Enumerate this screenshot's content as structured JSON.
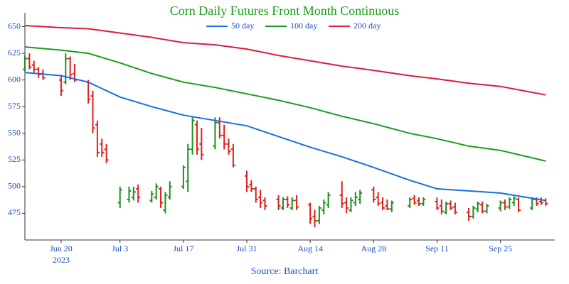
{
  "chart_data": {
    "type": "ohlc",
    "title": "Corn Daily Futures Front Month Continuous",
    "source": "Source: Barchart",
    "up_color": "#1f8f1f",
    "down_color": "#e0201b",
    "x": [
      "2023-06-12",
      "2023-06-13",
      "2023-06-14",
      "2023-06-15",
      "2023-06-16",
      "2023-06-20",
      "2023-06-21",
      "2023-06-22",
      "2023-06-23",
      "2023-06-26",
      "2023-06-27",
      "2023-06-28",
      "2023-06-29",
      "2023-06-30",
      "2023-07-03",
      "2023-07-05",
      "2023-07-06",
      "2023-07-07",
      "2023-07-10",
      "2023-07-11",
      "2023-07-12",
      "2023-07-13",
      "2023-07-14",
      "2023-07-17",
      "2023-07-18",
      "2023-07-19",
      "2023-07-20",
      "2023-07-21",
      "2023-07-24",
      "2023-07-25",
      "2023-07-26",
      "2023-07-27",
      "2023-07-28",
      "2023-07-31",
      "2023-08-01",
      "2023-08-02",
      "2023-08-03",
      "2023-08-04",
      "2023-08-07",
      "2023-08-08",
      "2023-08-09",
      "2023-08-10",
      "2023-08-11",
      "2023-08-14",
      "2023-08-15",
      "2023-08-16",
      "2023-08-17",
      "2023-08-18",
      "2023-08-21",
      "2023-08-22",
      "2023-08-23",
      "2023-08-24",
      "2023-08-25",
      "2023-08-28",
      "2023-08-29",
      "2023-08-30",
      "2023-08-31",
      "2023-09-01",
      "2023-09-05",
      "2023-09-06",
      "2023-09-07",
      "2023-09-08",
      "2023-09-11",
      "2023-09-12",
      "2023-09-13",
      "2023-09-14",
      "2023-09-15",
      "2023-09-18",
      "2023-09-19",
      "2023-09-20",
      "2023-09-21",
      "2023-09-22",
      "2023-09-25",
      "2023-09-26",
      "2023-09-27",
      "2023-09-28",
      "2023-09-29",
      "2023-10-02",
      "2023-10-03",
      "2023-10-04",
      "2023-10-05"
    ],
    "open": [
      610,
      620,
      614,
      610,
      606,
      600,
      598,
      620,
      606,
      598,
      585,
      558,
      540,
      535,
      485,
      488,
      490,
      498,
      487,
      490,
      498,
      478,
      490,
      500,
      505,
      535,
      558,
      540,
      538,
      560,
      548,
      540,
      535,
      510,
      502,
      498,
      490,
      487,
      488,
      480,
      488,
      480,
      487,
      483,
      472,
      468,
      478,
      483,
      492,
      485,
      478,
      485,
      488,
      497,
      490,
      485,
      482,
      479,
      482,
      489,
      487,
      484,
      486,
      482,
      476,
      484,
      481,
      476,
      472,
      479,
      483,
      477,
      480,
      485,
      481,
      485,
      488,
      480,
      488,
      486,
      487
    ],
    "high": [
      623,
      625,
      618,
      612,
      610,
      605,
      625,
      622,
      615,
      600,
      590,
      562,
      545,
      540,
      500,
      500,
      500,
      502,
      496,
      503,
      500,
      495,
      505,
      520,
      540,
      565,
      562,
      555,
      565,
      565,
      558,
      545,
      540,
      515,
      506,
      500,
      497,
      490,
      492,
      490,
      491,
      490,
      492,
      485,
      478,
      482,
      488,
      495,
      505,
      490,
      490,
      495,
      497,
      500,
      495,
      490,
      488,
      487,
      490,
      492,
      490,
      490,
      490,
      488,
      486,
      487,
      485,
      480,
      482,
      486,
      486,
      484,
      487,
      488,
      490,
      491,
      490,
      490,
      490,
      490,
      489
    ],
    "low": [
      608,
      610,
      607,
      602,
      600,
      585,
      596,
      600,
      598,
      578,
      550,
      528,
      528,
      522,
      480,
      485,
      487,
      485,
      485,
      488,
      480,
      475,
      488,
      498,
      495,
      530,
      530,
      525,
      535,
      545,
      535,
      530,
      518,
      495,
      495,
      485,
      480,
      478,
      478,
      478,
      480,
      478,
      478,
      465,
      462,
      465,
      474,
      480,
      480,
      475,
      476,
      482,
      484,
      485,
      482,
      478,
      478,
      476,
      480,
      483,
      482,
      482,
      478,
      474,
      474,
      478,
      474,
      468,
      470,
      476,
      475,
      475,
      477,
      478,
      479,
      482,
      476,
      478,
      482,
      483,
      482
    ],
    "close": [
      620,
      612,
      610,
      605,
      602,
      590,
      620,
      605,
      600,
      582,
      555,
      532,
      532,
      525,
      497,
      496,
      495,
      490,
      493,
      500,
      485,
      492,
      500,
      518,
      535,
      562,
      535,
      530,
      560,
      548,
      540,
      533,
      520,
      500,
      498,
      488,
      485,
      482,
      482,
      488,
      483,
      487,
      481,
      470,
      468,
      480,
      485,
      492,
      484,
      480,
      487,
      490,
      494,
      488,
      484,
      480,
      479,
      485,
      488,
      485,
      484,
      488,
      480,
      477,
      484,
      480,
      476,
      472,
      480,
      484,
      477,
      482,
      485,
      481,
      488,
      489,
      478,
      488,
      484,
      485,
      484
    ],
    "series": [
      {
        "name": "50 day",
        "color": "#1a6fe0",
        "x": [
          "2023-06-12",
          "2023-06-20",
          "2023-06-26",
          "2023-07-03",
          "2023-07-10",
          "2023-07-17",
          "2023-07-24",
          "2023-07-31",
          "2023-08-07",
          "2023-08-14",
          "2023-08-21",
          "2023-08-28",
          "2023-09-05",
          "2023-09-11",
          "2023-09-18",
          "2023-09-25",
          "2023-10-05"
        ],
        "values": [
          607,
          604,
          598,
          584,
          575,
          567,
          562,
          557,
          547,
          537,
          528,
          518,
          506,
          498,
          496,
          494,
          487
        ]
      },
      {
        "name": "100 day",
        "color": "#1a9c1a",
        "x": [
          "2023-06-12",
          "2023-06-20",
          "2023-06-26",
          "2023-07-03",
          "2023-07-10",
          "2023-07-17",
          "2023-07-24",
          "2023-07-31",
          "2023-08-07",
          "2023-08-14",
          "2023-08-21",
          "2023-08-28",
          "2023-09-05",
          "2023-09-11",
          "2023-09-18",
          "2023-09-25",
          "2023-10-05"
        ],
        "values": [
          631,
          628,
          625,
          616,
          606,
          598,
          593,
          587,
          581,
          574,
          566,
          559,
          550,
          545,
          538,
          534,
          524
        ]
      },
      {
        "name": "200 day",
        "color": "#d81e3c",
        "x": [
          "2023-06-12",
          "2023-06-20",
          "2023-06-26",
          "2023-07-03",
          "2023-07-10",
          "2023-07-17",
          "2023-07-24",
          "2023-07-31",
          "2023-08-07",
          "2023-08-14",
          "2023-08-21",
          "2023-08-28",
          "2023-09-05",
          "2023-09-11",
          "2023-09-18",
          "2023-09-25",
          "2023-10-05"
        ],
        "values": [
          651,
          649,
          648,
          644,
          640,
          635,
          633,
          629,
          623,
          618,
          613,
          609,
          604,
          601,
          597,
          594,
          586
        ]
      }
    ],
    "xlim": [
      "2023-06-12",
      "2023-10-07"
    ],
    "xticks": [
      {
        "value": "2023-06-20",
        "label": "Jun 20",
        "year": "2023"
      },
      {
        "value": "2023-07-03",
        "label": "Jul 3"
      },
      {
        "value": "2023-07-17",
        "label": "Jul 17"
      },
      {
        "value": "2023-07-31",
        "label": "Jul 31"
      },
      {
        "value": "2023-08-14",
        "label": "Aug 14"
      },
      {
        "value": "2023-08-28",
        "label": "Aug 28"
      },
      {
        "value": "2023-09-11",
        "label": "Sep 11"
      },
      {
        "value": "2023-09-25",
        "label": "Sep 25"
      }
    ],
    "ylim": [
      450,
      663
    ],
    "yticks": [
      475,
      500,
      525,
      550,
      575,
      600,
      625,
      650
    ]
  }
}
